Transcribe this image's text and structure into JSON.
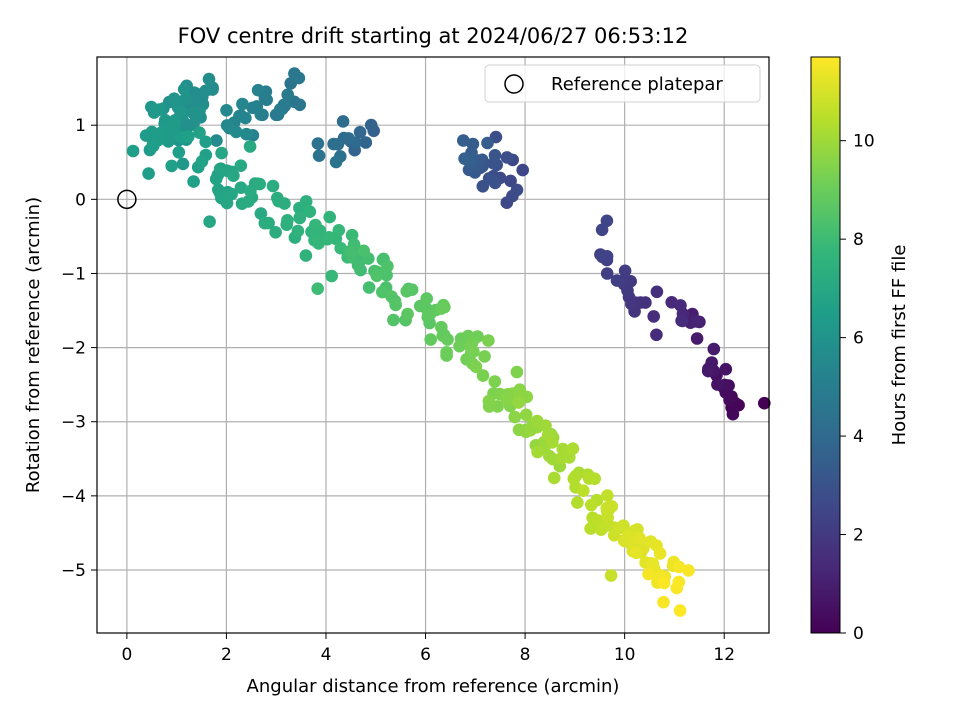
{
  "chart_data": {
    "type": "scatter",
    "title": "FOV centre drift starting at 2024/06/27 06:53:12",
    "xlabel": "Angular distance from reference (arcmin)",
    "ylabel": "Rotation from reference (arcmin)",
    "xlim": [
      -0.6,
      12.9
    ],
    "ylim": [
      -5.85,
      1.92
    ],
    "xticks": [
      0,
      2,
      4,
      6,
      8,
      10,
      12
    ],
    "yticks": [
      -5,
      -4,
      -3,
      -2,
      -1,
      0,
      1
    ],
    "grid": true,
    "legend": {
      "placement": "top-right",
      "entries": [
        "Reference platepar"
      ]
    },
    "reference_point": {
      "x": 0,
      "y": 0,
      "marker": "open-circle"
    },
    "colorbar": {
      "label": "Hours from first FF file",
      "colormap": "viridis",
      "range": [
        0,
        11.7
      ],
      "ticks": [
        0,
        2,
        4,
        6,
        8,
        10
      ],
      "colors": [
        "#440154",
        "#482878",
        "#3e4989",
        "#31688e",
        "#26828e",
        "#1f9e89",
        "#35b779",
        "#6ece58",
        "#b5de2b",
        "#fde725"
      ]
    },
    "trend_segments": [
      {
        "hours": [
          0.0,
          0.9
        ],
        "start": [
          12.3,
          -2.8
        ],
        "end": [
          11.7,
          -2.1
        ],
        "count": 22,
        "spread": 0.13
      },
      {
        "hours": [
          0.9,
          1.5
        ],
        "start": [
          11.5,
          -1.7
        ],
        "end": [
          11.0,
          -1.6
        ],
        "count": 10,
        "spread": 0.08
      },
      {
        "hours": [
          1.5,
          2.5
        ],
        "start": [
          10.6,
          -1.6
        ],
        "end": [
          9.4,
          -0.6
        ],
        "count": 22,
        "spread": 0.14
      },
      {
        "hours": [
          2.5,
          3.6
        ],
        "start": [
          7.8,
          0.2
        ],
        "end": [
          6.7,
          0.6
        ],
        "count": 30,
        "spread": 0.16
      },
      {
        "hours": [
          3.6,
          4.5
        ],
        "start": [
          5.0,
          0.9
        ],
        "end": [
          3.8,
          0.7
        ],
        "count": 16,
        "spread": 0.14
      },
      {
        "hours": [
          4.5,
          5.6
        ],
        "start": [
          3.4,
          1.4
        ],
        "end": [
          2.0,
          1.0
        ],
        "count": 32,
        "spread": 0.17
      },
      {
        "hours": [
          5.6,
          6.5
        ],
        "start": [
          1.6,
          1.4
        ],
        "end": [
          0.5,
          0.8
        ],
        "count": 60,
        "spread": 0.2
      },
      {
        "hours": [
          6.5,
          7.3
        ],
        "start": [
          1.2,
          0.6
        ],
        "end": [
          3.0,
          0.0
        ],
        "count": 42,
        "spread": 0.17
      },
      {
        "hours": [
          7.3,
          8.5
        ],
        "start": [
          3.2,
          -0.2
        ],
        "end": [
          5.5,
          -1.2
        ],
        "count": 50,
        "spread": 0.17
      },
      {
        "hours": [
          8.5,
          9.4
        ],
        "start": [
          5.6,
          -1.3
        ],
        "end": [
          7.3,
          -2.3
        ],
        "count": 42,
        "spread": 0.17
      },
      {
        "hours": [
          9.4,
          10.4
        ],
        "start": [
          7.5,
          -2.6
        ],
        "end": [
          9.2,
          -3.9
        ],
        "count": 48,
        "spread": 0.17
      },
      {
        "hours": [
          10.4,
          11.7
        ],
        "start": [
          9.3,
          -4.1
        ],
        "end": [
          11.1,
          -5.2
        ],
        "count": 55,
        "spread": 0.17
      }
    ]
  }
}
